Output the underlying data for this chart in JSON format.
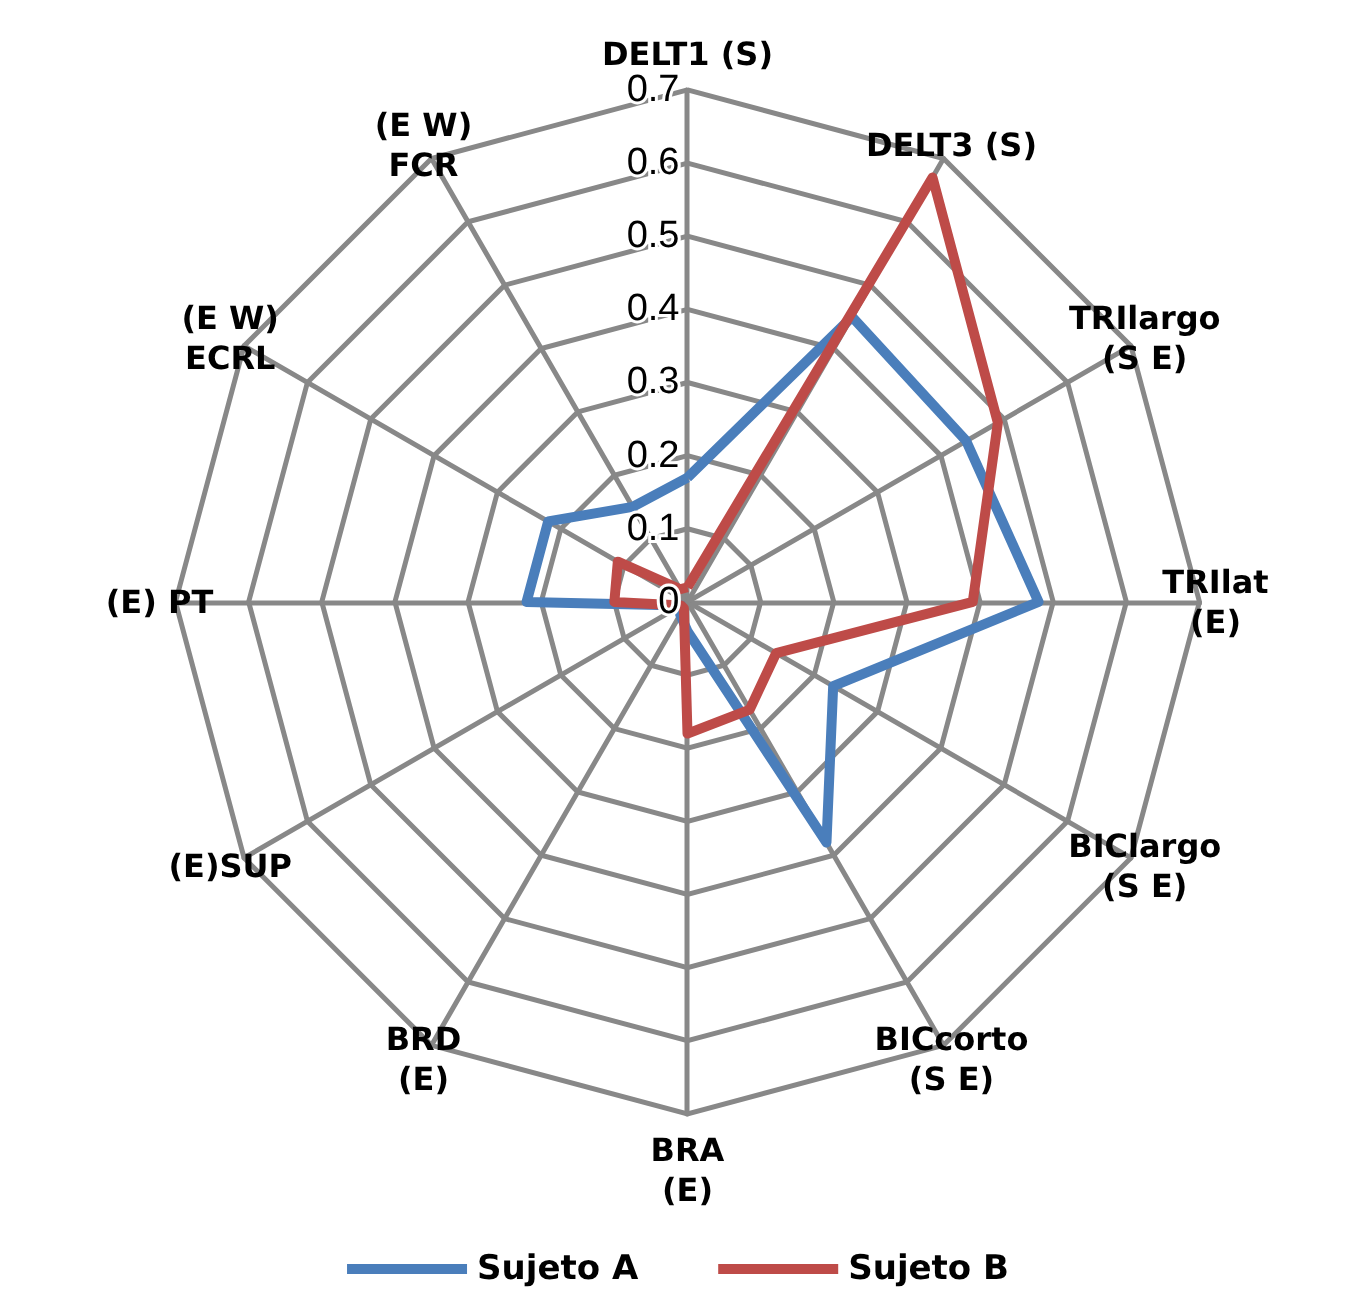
{
  "chart_data": {
    "type": "radar",
    "categories": [
      "DELT1 (S)",
      "DELT3 (S)",
      "TRIlargo\n(S E)",
      "TRIlat\n(E)",
      "BIClargo\n(S E)",
      "BICcorto\n(S E)",
      "BRA\n(E)",
      "BRD\n(E)",
      "(E)SUP",
      "(E) PT",
      "(E W)\nECRL",
      "(E W)\nFCR"
    ],
    "series": [
      {
        "name": "Sujeto A",
        "color": "#4a7ebb",
        "values": [
          0.17,
          0.45,
          0.44,
          0.48,
          0.23,
          0.38,
          0.04,
          0.02,
          0.01,
          0.22,
          0.22,
          0.15
        ]
      },
      {
        "name": "Sujeto B",
        "color": "#be4b48",
        "values": [
          0.02,
          0.67,
          0.49,
          0.39,
          0.14,
          0.17,
          0.18,
          0.01,
          0.01,
          0.1,
          0.11,
          0.02
        ]
      }
    ],
    "ylim": [
      0,
      0.7
    ],
    "yticks": [
      0,
      0.1,
      0.2,
      0.3,
      0.4,
      0.5,
      0.6,
      0.7
    ],
    "legend": "bottom",
    "marker": "none",
    "line_style": "solid"
  }
}
